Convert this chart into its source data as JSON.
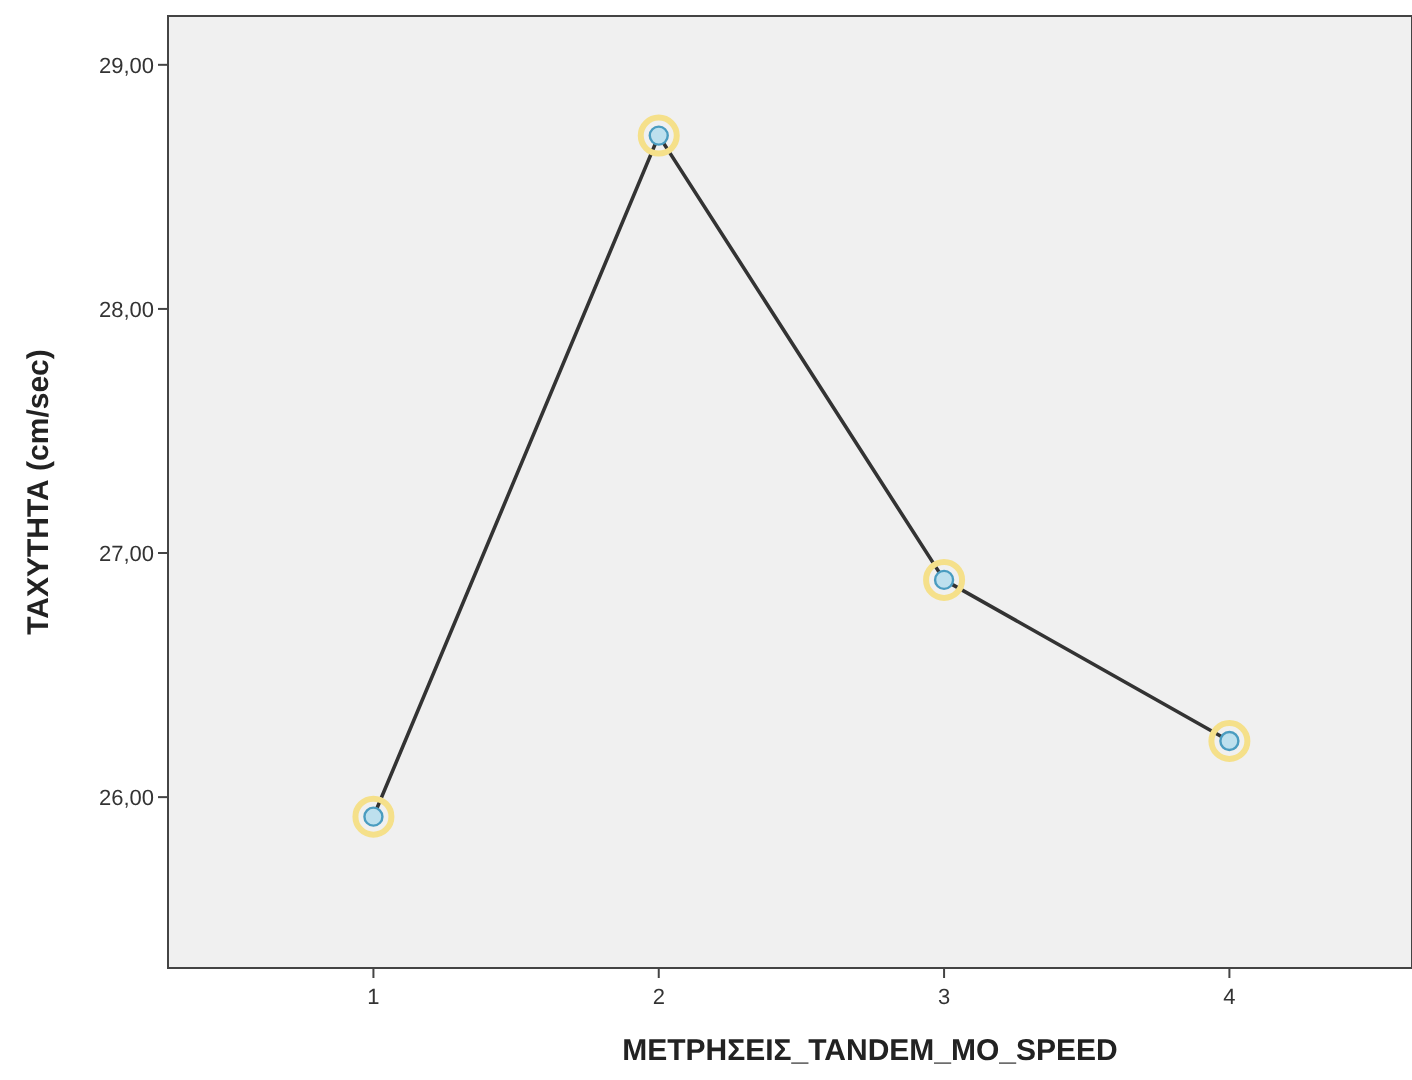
{
  "chart_data": {
    "type": "line",
    "xlabel": "ΜΕΤΡΗΣΕΙΣ_TANDEM_MO_SPEED",
    "ylabel": "ΤΑΧΥΤΗΤΑ (cm/sec)",
    "categories": [
      "1",
      "2",
      "3",
      "4"
    ],
    "series": [
      {
        "color": "#333333",
        "values": [
          25.92,
          28.71,
          26.89,
          26.23
        ]
      }
    ],
    "ylim": [
      25.3,
      29.2
    ],
    "yticks": [
      {
        "value": 26,
        "label": "26,00"
      },
      {
        "value": 27,
        "label": "27,00"
      },
      {
        "value": 28,
        "label": "28,00"
      },
      {
        "value": 29,
        "label": "29,00"
      }
    ],
    "marker": "circle"
  }
}
